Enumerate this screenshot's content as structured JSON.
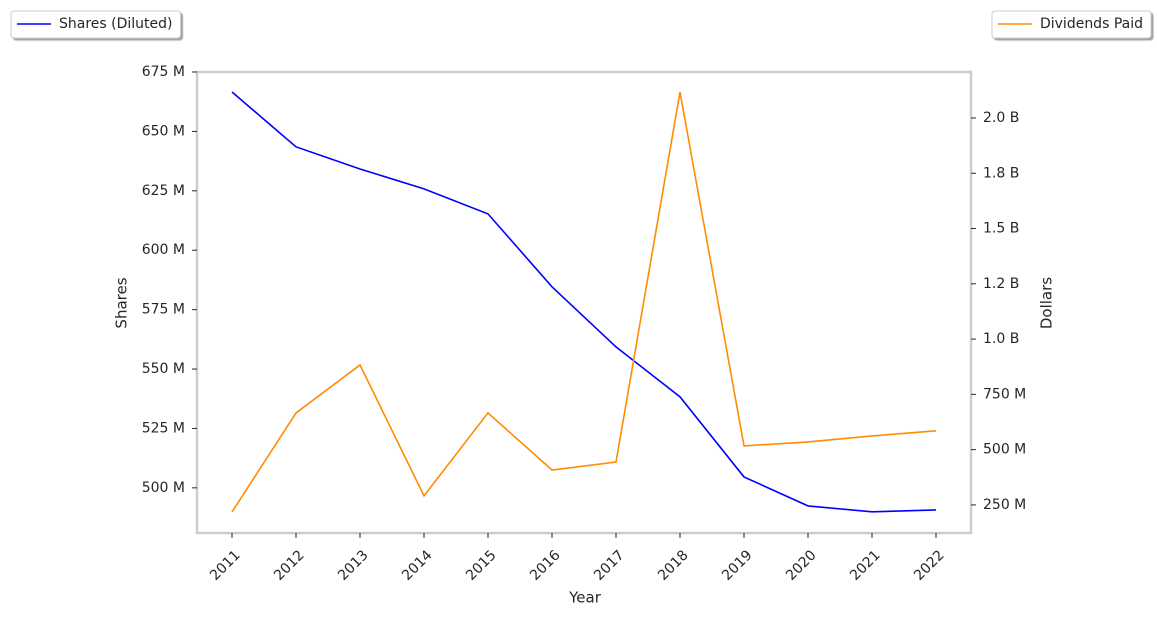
{
  "chart_data": {
    "type": "line",
    "xlabel": "Year",
    "ylabel": "Shares",
    "y2label": "Dollars",
    "categories": [
      "2011",
      "2012",
      "2013",
      "2014",
      "2015",
      "2016",
      "2017",
      "2018",
      "2019",
      "2020",
      "2021",
      "2022"
    ],
    "series": [
      {
        "name": "Shares (Diluted)",
        "color": "#0000ff",
        "axis": "y",
        "legend": "upper left",
        "values": [
          666600000,
          643500000,
          634200000,
          625800000,
          615300000,
          584600000,
          559300000,
          538300000,
          504600000,
          492400000,
          489900000,
          490700000
        ]
      },
      {
        "name": "Dividends Paid",
        "color": "#ff8c00",
        "axis": "y2",
        "legend": "upper right",
        "values": [
          218000000,
          666000000,
          883000000,
          291000000,
          666000000,
          408000000,
          444000000,
          2117000000,
          517000000,
          535000000,
          562000000,
          585000000
        ]
      }
    ],
    "ylim": [
      481000000,
      675000000
    ],
    "yticks": [
      {
        "value": 500000000,
        "label": "500 M"
      },
      {
        "value": 525000000,
        "label": "525 M"
      },
      {
        "value": 550000000,
        "label": "550 M"
      },
      {
        "value": 575000000,
        "label": "575 M"
      },
      {
        "value": 600000000,
        "label": "600 M"
      },
      {
        "value": 625000000,
        "label": "625 M"
      },
      {
        "value": 650000000,
        "label": "650 M"
      },
      {
        "value": 675000000,
        "label": "675 M"
      }
    ],
    "y2lim": [
      123000000,
      2208000000
    ],
    "y2ticks": [
      {
        "value": 250000000,
        "label": "250 M"
      },
      {
        "value": 500000000,
        "label": "500 M"
      },
      {
        "value": 750000000,
        "label": "750 M"
      },
      {
        "value": 1000000000,
        "label": "1.0 B"
      },
      {
        "value": 1250000000,
        "label": "1.2 B"
      },
      {
        "value": 1500000000,
        "label": "1.5 B"
      },
      {
        "value": 1750000000,
        "label": "1.8 B"
      },
      {
        "value": 2000000000,
        "label": "2.0 B"
      }
    ],
    "grid": false
  }
}
